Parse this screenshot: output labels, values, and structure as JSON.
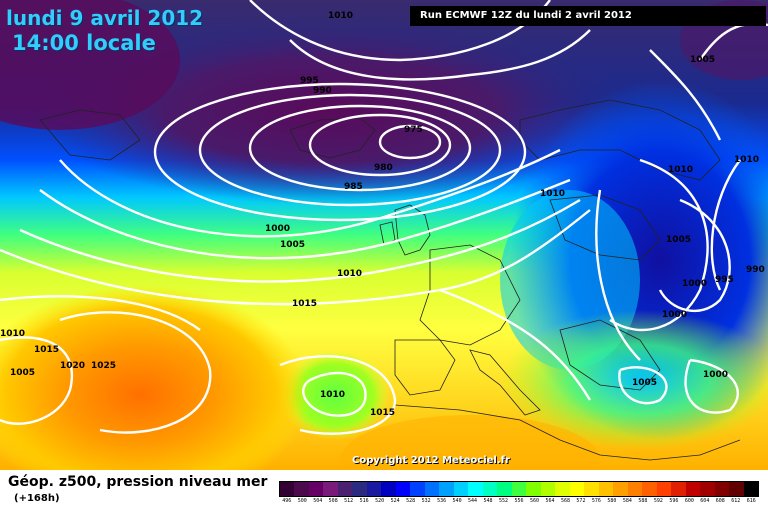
{
  "header": {
    "date_line": "lundi 9 avril 2012",
    "time_line": "14:00 locale",
    "run_info": "Run ECMWF 12Z du lundi 2 avril 2012"
  },
  "map": {
    "isobar_labels": [
      "1010",
      "1005",
      "995",
      "990",
      "975",
      "980",
      "985",
      "1000",
      "1005",
      "1010",
      "1015",
      "1010",
      "1010",
      "1015",
      "1020",
      "1025",
      "1005",
      "1010",
      "1015",
      "1010",
      "1010",
      "1005",
      "990",
      "995",
      "1000",
      "1000",
      "1005",
      "1000",
      "1010"
    ],
    "copyright": "Copyright 2012 Meteociel.fr"
  },
  "footer": {
    "title": "Géop. z500, pression niveau mer",
    "subtitle": "(+168h)"
  },
  "colorbar": {
    "colors": [
      "#330033",
      "#4b0a4b",
      "#660066",
      "#7a1a7a",
      "#4a2070",
      "#2a2a80",
      "#1a1aa0",
      "#0000c0",
      "#0000ff",
      "#0040ff",
      "#0070ff",
      "#00a0ff",
      "#00d0ff",
      "#00ffff",
      "#00ffc0",
      "#00ff80",
      "#40ff40",
      "#80ff00",
      "#b0ff00",
      "#e0ff00",
      "#ffff00",
      "#ffe000",
      "#ffc000",
      "#ffa000",
      "#ff8000",
      "#ff6000",
      "#ff4000",
      "#e02000",
      "#c00000",
      "#a00000",
      "#800000",
      "#600000",
      "#000000"
    ],
    "labels": [
      "496",
      "500",
      "504",
      "508",
      "512",
      "516",
      "520",
      "524",
      "528",
      "532",
      "536",
      "540",
      "544",
      "548",
      "552",
      "556",
      "560",
      "564",
      "568",
      "572",
      "576",
      "580",
      "584",
      "588",
      "592",
      "596",
      "600",
      "604",
      "608",
      "612",
      "616"
    ]
  }
}
